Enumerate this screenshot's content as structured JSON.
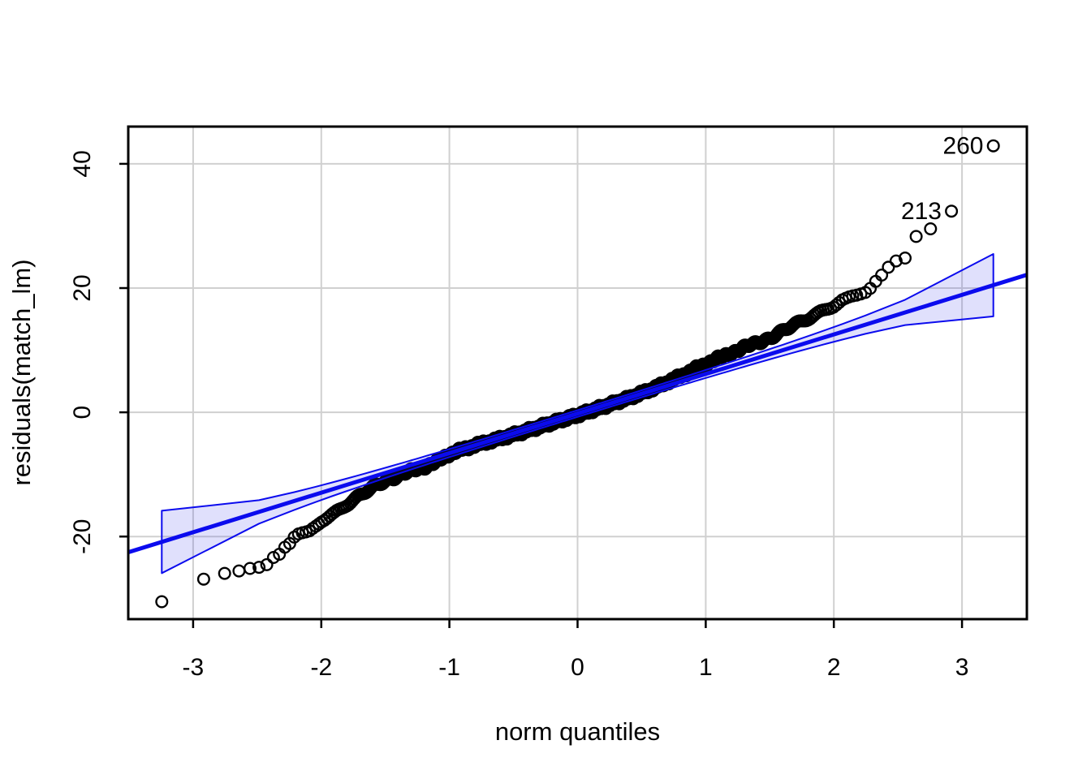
{
  "chart_data": {
    "type": "scatter",
    "subtype": "qq-plot",
    "title": "",
    "xlabel": "norm quantiles",
    "ylabel": "residuals(match_lm)",
    "xlim": [
      -3.506,
      3.506
    ],
    "ylim": [
      -33.3,
      46.0
    ],
    "x_ticks": [
      -3,
      -2,
      -1,
      0,
      1,
      2,
      3
    ],
    "y_ticks": [
      -20,
      0,
      20,
      40
    ],
    "x_tick_labels": [
      "-3",
      "-2",
      "-1",
      "0",
      "1",
      "2",
      "3"
    ],
    "y_tick_labels": [
      "-20",
      "0",
      "20",
      "40"
    ],
    "grid": true,
    "legend": "none",
    "n_points": 850,
    "point_style": {
      "shape": "open-circle",
      "radius": 6.8,
      "stroke": "#000000",
      "stroke_width": 2.4
    },
    "reference_line": {
      "slope": 6.37,
      "intercept": -0.2,
      "color": "#0b0bee",
      "width": 5
    },
    "confidence_envelope": {
      "level": 0.95,
      "z": 1.96,
      "sd": 6.37,
      "fill": "rgba(60,60,235,0.16)",
      "stroke": "#0b0bee",
      "stroke_width": 2,
      "q_start": -3.243,
      "q_end": 3.243
    },
    "outliers": [
      {
        "label": "260",
        "q": 3.243,
        "value": 42.9
      },
      {
        "label": "213",
        "q": 2.917,
        "value": 32.4
      }
    ],
    "qq_curve_anchors": [
      [
        -3.243,
        -30.5
      ],
      [
        -2.92,
        -26.9
      ],
      [
        -2.76,
        -26.0
      ],
      [
        -2.64,
        -25.6
      ],
      [
        -2.56,
        -25.2
      ],
      [
        -2.5,
        -25.0
      ],
      [
        -2.44,
        -24.9
      ],
      [
        -2.38,
        -23.4
      ],
      [
        -2.33,
        -22.9
      ],
      [
        -2.28,
        -21.6
      ],
      [
        -2.24,
        -21.1
      ],
      [
        -2.2,
        -19.9
      ],
      [
        -2.1,
        -19.4
      ],
      [
        -2.0,
        -17.4
      ],
      [
        -1.9,
        -16.2
      ],
      [
        -1.8,
        -14.7
      ],
      [
        -1.7,
        -13.5
      ],
      [
        -1.6,
        -12.2
      ],
      [
        -1.5,
        -11.0
      ],
      [
        -1.4,
        -10.2
      ],
      [
        -1.3,
        -9.5
      ],
      [
        -1.2,
        -8.8
      ],
      [
        -1.1,
        -8.0
      ],
      [
        -1.0,
        -6.7
      ],
      [
        -0.8,
        -5.3
      ],
      [
        -0.6,
        -4.2
      ],
      [
        -0.4,
        -3.0
      ],
      [
        -0.2,
        -1.7
      ],
      [
        0.0,
        -0.45
      ],
      [
        0.2,
        0.9
      ],
      [
        0.4,
        2.3
      ],
      [
        0.6,
        3.9
      ],
      [
        0.8,
        5.8
      ],
      [
        0.9,
        6.8
      ],
      [
        1.0,
        7.8
      ],
      [
        1.1,
        8.7
      ],
      [
        1.2,
        9.6
      ],
      [
        1.3,
        10.4
      ],
      [
        1.4,
        11.2
      ],
      [
        1.5,
        12.0
      ],
      [
        1.6,
        13.0
      ],
      [
        1.7,
        14.1
      ],
      [
        1.8,
        15.2
      ],
      [
        1.9,
        16.3
      ],
      [
        2.0,
        17.3
      ],
      [
        2.06,
        18.1
      ],
      [
        2.12,
        18.4
      ],
      [
        2.18,
        18.7
      ],
      [
        2.23,
        19.1
      ],
      [
        2.27,
        19.5
      ],
      [
        2.31,
        20.8
      ],
      [
        2.36,
        21.8
      ],
      [
        2.41,
        23.1
      ],
      [
        2.48,
        24.3
      ],
      [
        2.56,
        24.8
      ],
      [
        2.63,
        28.1
      ],
      [
        2.75,
        29.4
      ],
      [
        2.92,
        32.4
      ],
      [
        3.243,
        42.9
      ]
    ]
  },
  "colors": {
    "background": "#ffffff",
    "grid": "#d0d0d0",
    "axis": "#000000",
    "text": "#000000",
    "line_blue": "#0b0bee"
  },
  "layout_note": "single R-style qq plot panel"
}
